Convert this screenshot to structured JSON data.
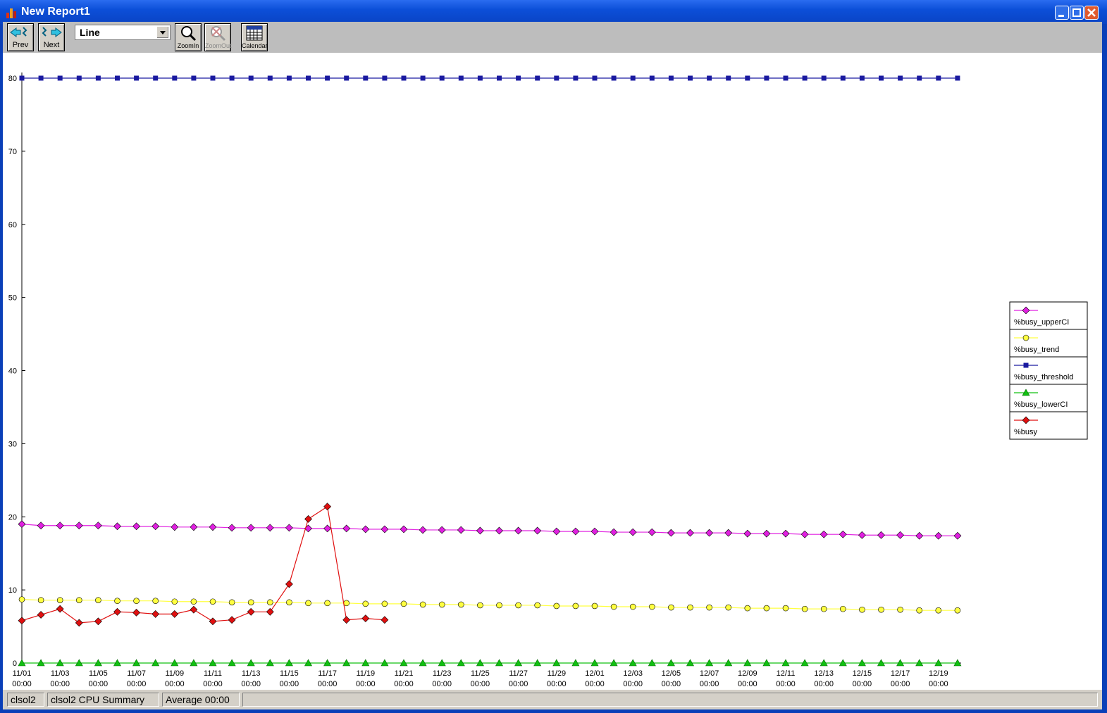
{
  "window": {
    "title": "New Report1"
  },
  "toolbar": {
    "prev_label": "Prev",
    "next_label": "Next",
    "chart_type": "Line",
    "zoom_in_label": "ZoomIn",
    "zoom_out_label": "ZoomOut",
    "calendar_label": "Calendar"
  },
  "status": {
    "host": "clsol2",
    "report": "clsol2 CPU Summary",
    "interval": "Average 00:00",
    "extra": ""
  },
  "chart_data": {
    "type": "line",
    "ylim": [
      0,
      80
    ],
    "yticks": [
      0,
      10,
      20,
      30,
      40,
      50,
      60,
      70,
      80
    ],
    "x": [
      "11/01",
      "11/02",
      "11/03",
      "11/04",
      "11/05",
      "11/06",
      "11/07",
      "11/08",
      "11/09",
      "11/10",
      "11/11",
      "11/12",
      "11/13",
      "11/14",
      "11/15",
      "11/16",
      "11/17",
      "11/18",
      "11/19",
      "11/20",
      "11/21",
      "11/22",
      "11/23",
      "11/24",
      "11/25",
      "11/26",
      "11/27",
      "11/28",
      "11/29",
      "11/30",
      "12/01",
      "12/02",
      "12/03",
      "12/04",
      "12/05",
      "12/06",
      "12/07",
      "12/08",
      "12/09",
      "12/10",
      "12/11",
      "12/12",
      "12/13",
      "12/14",
      "12/15",
      "12/16",
      "12/17",
      "12/18",
      "12/19",
      "12/20"
    ],
    "xtick_labels": [
      "11/01",
      "11/03",
      "11/05",
      "11/07",
      "11/09",
      "11/11",
      "11/13",
      "11/15",
      "11/17",
      "11/19",
      "11/21",
      "11/23",
      "11/25",
      "11/27",
      "11/29",
      "12/01",
      "12/03",
      "12/05",
      "12/07",
      "12/09",
      "12/11",
      "12/13",
      "12/15",
      "12/17",
      "12/19"
    ],
    "xtick_sublabel": "00:00",
    "legend_position": "right",
    "series": [
      {
        "name": "%busy_upperCI",
        "color": "#e020e0",
        "marker": "diamond",
        "values": [
          19.0,
          18.8,
          18.8,
          18.8,
          18.8,
          18.7,
          18.7,
          18.7,
          18.6,
          18.6,
          18.6,
          18.5,
          18.5,
          18.5,
          18.5,
          18.4,
          18.4,
          18.4,
          18.3,
          18.3,
          18.3,
          18.2,
          18.2,
          18.2,
          18.1,
          18.1,
          18.1,
          18.1,
          18.0,
          18.0,
          18.0,
          17.9,
          17.9,
          17.9,
          17.8,
          17.8,
          17.8,
          17.8,
          17.7,
          17.7,
          17.7,
          17.6,
          17.6,
          17.6,
          17.5,
          17.5,
          17.5,
          17.4,
          17.4,
          17.4
        ]
      },
      {
        "name": "%busy_trend",
        "color": "#ffff40",
        "marker": "circle",
        "values": [
          8.7,
          8.6,
          8.6,
          8.6,
          8.6,
          8.5,
          8.5,
          8.5,
          8.4,
          8.4,
          8.4,
          8.3,
          8.3,
          8.3,
          8.3,
          8.2,
          8.2,
          8.2,
          8.1,
          8.1,
          8.1,
          8.0,
          8.0,
          8.0,
          7.9,
          7.9,
          7.9,
          7.9,
          7.8,
          7.8,
          7.8,
          7.7,
          7.7,
          7.7,
          7.6,
          7.6,
          7.6,
          7.6,
          7.5,
          7.5,
          7.5,
          7.4,
          7.4,
          7.4,
          7.3,
          7.3,
          7.3,
          7.2,
          7.2,
          7.2
        ]
      },
      {
        "name": "%busy_threshold",
        "color": "#1a1aa0",
        "marker": "square",
        "values": [
          80,
          80,
          80,
          80,
          80,
          80,
          80,
          80,
          80,
          80,
          80,
          80,
          80,
          80,
          80,
          80,
          80,
          80,
          80,
          80,
          80,
          80,
          80,
          80,
          80,
          80,
          80,
          80,
          80,
          80,
          80,
          80,
          80,
          80,
          80,
          80,
          80,
          80,
          80,
          80,
          80,
          80,
          80,
          80,
          80,
          80,
          80,
          80,
          80,
          80
        ]
      },
      {
        "name": "%busy_lowerCI",
        "color": "#10c010",
        "marker": "triangle",
        "values": [
          0,
          0,
          0,
          0,
          0,
          0,
          0,
          0,
          0,
          0,
          0,
          0,
          0,
          0,
          0,
          0,
          0,
          0,
          0,
          0,
          0,
          0,
          0,
          0,
          0,
          0,
          0,
          0,
          0,
          0,
          0,
          0,
          0,
          0,
          0,
          0,
          0,
          0,
          0,
          0,
          0,
          0,
          0,
          0,
          0,
          0,
          0,
          0,
          0,
          0
        ]
      },
      {
        "name": "%busy",
        "color": "#e01010",
        "marker": "diamond",
        "values": [
          5.8,
          6.6,
          7.4,
          5.5,
          5.7,
          7.0,
          6.9,
          6.7,
          6.7,
          7.3,
          5.7,
          5.9,
          7.0,
          7.0,
          10.8,
          19.7,
          21.4,
          5.9,
          6.1,
          5.9,
          null,
          null,
          null,
          null,
          null,
          null,
          null,
          null,
          null,
          null,
          null,
          null,
          null,
          null,
          null,
          null,
          null,
          null,
          null,
          null,
          null,
          null,
          null,
          null,
          null,
          null,
          null,
          null,
          null,
          null
        ]
      }
    ]
  }
}
